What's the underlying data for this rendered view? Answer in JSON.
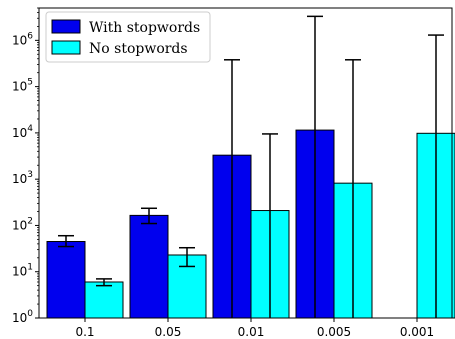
{
  "chart_data": {
    "type": "bar",
    "categories": [
      "0.1",
      "0.05",
      "0.01",
      "0.005",
      "0.001"
    ],
    "yscale": "log",
    "ylim": [
      1,
      5000000
    ],
    "ytick_values": [
      1,
      10,
      100,
      1000,
      10000,
      100000,
      1000000
    ],
    "ytick_labels": [
      {
        "base": "10",
        "exp": "0"
      },
      {
        "base": "10",
        "exp": "1"
      },
      {
        "base": "10",
        "exp": "2"
      },
      {
        "base": "10",
        "exp": "3"
      },
      {
        "base": "10",
        "exp": "4"
      },
      {
        "base": "10",
        "exp": "5"
      },
      {
        "base": "10",
        "exp": "6"
      }
    ],
    "legend_position": "top-left",
    "grid": false,
    "series": [
      {
        "name": "With stopwords",
        "color": "#0000ee",
        "values": [
          45,
          165,
          3300,
          11500,
          null
        ],
        "err_low": [
          35,
          110,
          1,
          1,
          null
        ],
        "err_high": [
          60,
          235,
          380000,
          3300000,
          null
        ]
      },
      {
        "name": "No stopwords",
        "color": "#00ffff",
        "values": [
          6,
          23,
          210,
          820,
          9800
        ],
        "err_low": [
          5,
          13,
          1,
          1,
          1
        ],
        "err_high": [
          7,
          33,
          9500,
          380000,
          1300000
        ]
      }
    ]
  }
}
